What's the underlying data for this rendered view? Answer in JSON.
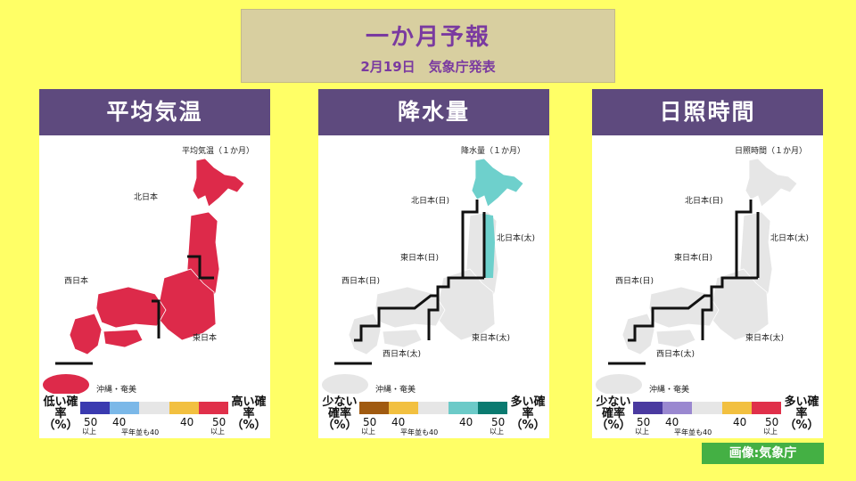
{
  "header": {
    "title": "一か月予報",
    "subtitle": "2月19日　気象庁発表"
  },
  "panels": [
    {
      "heading": "平均気温",
      "map_title": "平均気温（１か月）",
      "regions": [
        "北日本",
        "西日本",
        "東日本",
        "沖縄・奄美"
      ],
      "legend": {
        "left": "低い確率（%）",
        "right": "高い確率（%）",
        "n1": "50",
        "n2": "40",
        "n3": "40",
        "n4": "50",
        "s1": "以上",
        "s4": "以上",
        "mid": "平年並も40",
        "colors": [
          "#3a3ab0",
          "#7bb8e8",
          "#e6e6e6",
          "#f2c040",
          "#e0304a"
        ]
      },
      "forecast_color": "#dd2a4a"
    },
    {
      "heading": "降水量",
      "map_title": "降水量（１か月）",
      "regions": [
        "北日本(日)",
        "北日本(太)",
        "東日本(日)",
        "西日本(日)",
        "東日本(太)",
        "西日本(太)",
        "沖縄・奄美"
      ],
      "legend": {
        "left": "少ない確率（%）",
        "right": "多い確率（%）",
        "n1": "50",
        "n2": "40",
        "n3": "40",
        "n4": "50",
        "s1": "以上",
        "s4": "以上",
        "mid": "平年並も40",
        "colors": [
          "#a05a10",
          "#f2c040",
          "#e6e6e6",
          "#6ccac8",
          "#0a7a70"
        ]
      },
      "forecast_color": "#6ed0cc"
    },
    {
      "heading": "日照時間",
      "map_title": "日照時間（１か月）",
      "regions": [
        "北日本(日)",
        "北日本(太)",
        "東日本(日)",
        "西日本(日)",
        "東日本(太)",
        "西日本(太)",
        "沖縄・奄美"
      ],
      "legend": {
        "left": "少ない確率（%）",
        "right": "多い確率（%）",
        "n1": "50",
        "n2": "40",
        "n3": "40",
        "n4": "50",
        "s1": "以上",
        "s4": "以上",
        "mid": "平年並も40",
        "colors": [
          "#4a3aa0",
          "#9a88d0",
          "#e6e6e6",
          "#f2c040",
          "#e0304a"
        ]
      },
      "forecast_color": "#e6e6e6"
    }
  ],
  "credit": "画像:気象庁"
}
